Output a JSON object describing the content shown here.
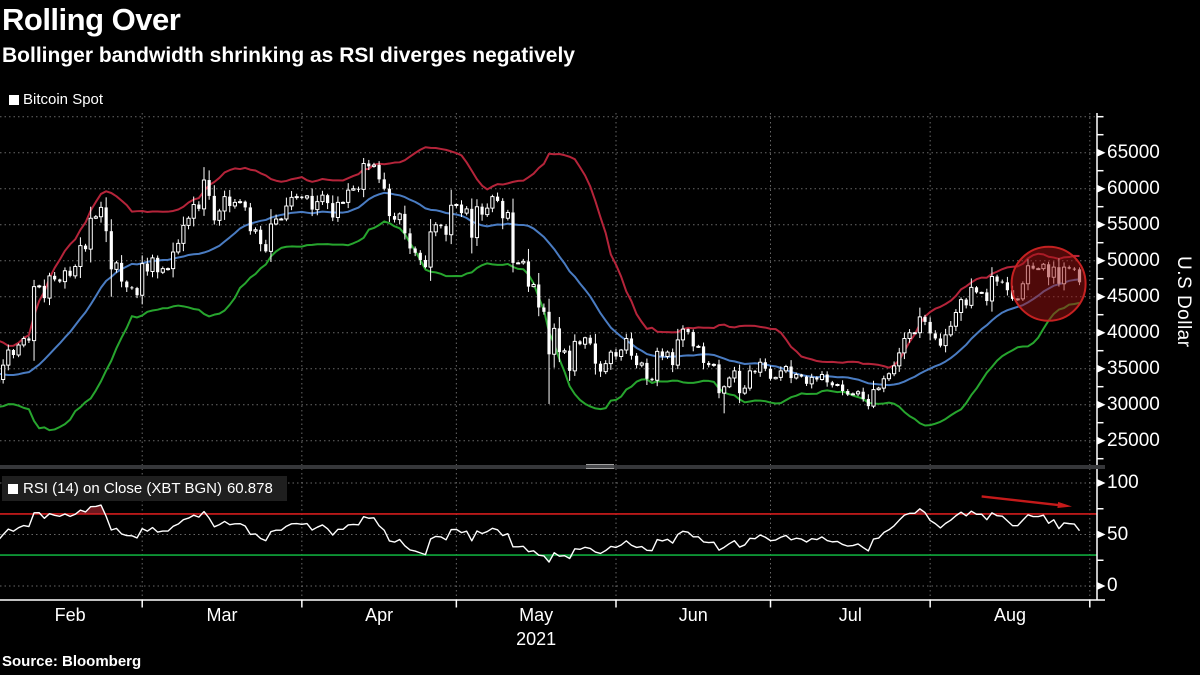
{
  "window": {
    "title": "Rolling Over",
    "subtitle": "Bollinger bandwidth shrinking as RSI diverges negatively",
    "source": "Source: Bloomberg"
  },
  "price_panel": {
    "legend": {
      "label": "Bitcoin Spot",
      "swatch_color": "#ffffff"
    },
    "y_axis": {
      "title": "U.S Dollar",
      "tick_values": [
        65000,
        60000,
        55000,
        50000,
        45000,
        40000,
        35000,
        30000,
        25000
      ]
    }
  },
  "rsi_panel": {
    "legend": {
      "label": "RSI (14)  on Close (XBT BGN)",
      "value": "60.878",
      "swatch_color": "#ffffff"
    },
    "y_axis": {
      "tick_values": [
        100,
        50,
        0
      ]
    },
    "levels": {
      "overbought": 70,
      "oversold": 30
    }
  },
  "x_axis": {
    "month_labels": [
      "Feb",
      "Mar",
      "Apr",
      "May",
      "Jun",
      "Jul",
      "Aug"
    ],
    "year_label": "2021"
  },
  "colors": {
    "background": "#000000",
    "text": "#ffffff",
    "grid": "rgba(190,190,190,0.55)",
    "axis": "#ffffff",
    "candle": "#ffffff",
    "boll_upper": "#b5243a",
    "boll_mid": "#4a7cc2",
    "boll_lower": "#27a52e",
    "rsi_line": "#ffffff",
    "rsi_overbought_line": "#d21c1c",
    "rsi_oversold_line": "#0fa83c",
    "rsi_over_fill": "rgba(185,40,50,0.6)",
    "rsi_under_fill": "rgba(20,165,70,0.6)",
    "annotation_circle_fill": "rgba(158,18,18,0.5)",
    "annotation_circle_stroke": "rgba(205,35,35,0.95)",
    "annotation_arrow": "#c51a1a"
  },
  "chart_data": {
    "type": "candlestick",
    "title": "Rolling Over",
    "ylabel": "U.S Dollar",
    "ylim": [
      21600,
      70250
    ],
    "y_ticks": [
      25000,
      30000,
      35000,
      40000,
      45000,
      50000,
      55000,
      60000,
      65000
    ],
    "grid": true,
    "x_months": [
      {
        "label": "Feb",
        "days": 28
      },
      {
        "label": "Mar",
        "days": 31
      },
      {
        "label": "Apr",
        "days": 30
      },
      {
        "label": "May",
        "days": 31
      },
      {
        "label": "Jun",
        "days": 30
      },
      {
        "label": "Jul",
        "days": 31
      },
      {
        "label": "Aug",
        "days": 31
      }
    ],
    "visible_start_index": 25,
    "closes": [
      39400,
      40800,
      40200,
      38300,
      35500,
      34000,
      37400,
      39400,
      36800,
      36100,
      35800,
      36600,
      36000,
      35900,
      30800,
      33000,
      32100,
      32300,
      32300,
      32600,
      30400,
      33400,
      34300,
      34300,
      33100,
      33500,
      35500,
      37600,
      36900,
      38300,
      39200,
      38900,
      46400,
      46500,
      44800,
      47900,
      47400,
      47100,
      48600,
      47900,
      49200,
      52100,
      51600,
      55900,
      56100,
      57400,
      54100,
      48800,
      49700,
      47100,
      46300,
      46200,
      45200,
      49600,
      48500,
      50400,
      48400,
      48900,
      48900,
      51200,
      52400,
      54900,
      55900,
      57800,
      57200,
      61200,
      59000,
      55600,
      56900,
      58900,
      57600,
      58100,
      58200,
      57400,
      54100,
      54300,
      52300,
      51300,
      55100,
      55800,
      55800,
      57600,
      58800,
      58900,
      58700,
      59000,
      57100,
      58200,
      59100,
      58000,
      56000,
      58100,
      58100,
      59800,
      60000,
      59900,
      63500,
      63100,
      63300,
      61300,
      60000,
      56200,
      55700,
      56500,
      53800,
      51700,
      51100,
      50100,
      49100,
      54000,
      55000,
      54800,
      53600,
      57700,
      57800,
      56600,
      57200,
      53200,
      57500,
      56400,
      57300,
      58900,
      58300,
      55900,
      56700,
      49700,
      49700,
      49900,
      46400,
      46700,
      43500,
      42900,
      37000,
      40600,
      37300,
      37500,
      34700,
      38800,
      38400,
      39300,
      38500,
      35700,
      34600,
      35700,
      37300,
      36700,
      37600,
      39200,
      36800,
      35500,
      35800,
      33600,
      33400,
      37400,
      36700,
      37300,
      35500,
      39000,
      40500,
      40100,
      38100,
      38100,
      35800,
      35500,
      35600,
      31600,
      32500,
      33700,
      34700,
      31600,
      32300,
      34700,
      34500,
      35900,
      35000,
      33600,
      33800,
      34700,
      35300,
      33700,
      34200,
      33900,
      32900,
      33800,
      33500,
      34200,
      33100,
      32700,
      32800,
      31900,
      31400,
      31500,
      31800,
      30800,
      29800,
      32100,
      32300,
      33600,
      34300,
      35400,
      37200,
      39200,
      40000,
      40000,
      42200,
      41500,
      39900,
      39200,
      38200,
      39700,
      40900,
      42800,
      44600,
      43800,
      46300,
      45600,
      45600,
      44400,
      47800,
      47100,
      47000,
      45900,
      44700,
      44700,
      46800,
      49300,
      48900,
      48900,
      49500,
      47700,
      49100,
      46800,
      49100,
      48900,
      48800,
      47000
    ],
    "wick_overrides": {
      "47": {
        "low": 45000
      },
      "132": {
        "low": 30100
      },
      "166": {
        "low": 28800
      },
      "194": {
        "low": 29350
      }
    },
    "overlays": {
      "name": "Bollinger Bands",
      "period": 20,
      "mult": 2
    },
    "sub_chart": {
      "type": "line",
      "name": "RSI (14) on Close (XBT BGN)",
      "range": [
        0,
        100
      ],
      "ticks": [
        100,
        50,
        0
      ],
      "overbought": 70,
      "oversold": 30,
      "last_value": 60.878
    },
    "annotations": [
      {
        "type": "circle",
        "day": 204,
        "price": 46800,
        "radius_px": 37
      },
      {
        "type": "arrow",
        "from_day": 191,
        "from_rsi": 87,
        "to_day": 207,
        "to_rsi": 78
      }
    ]
  }
}
